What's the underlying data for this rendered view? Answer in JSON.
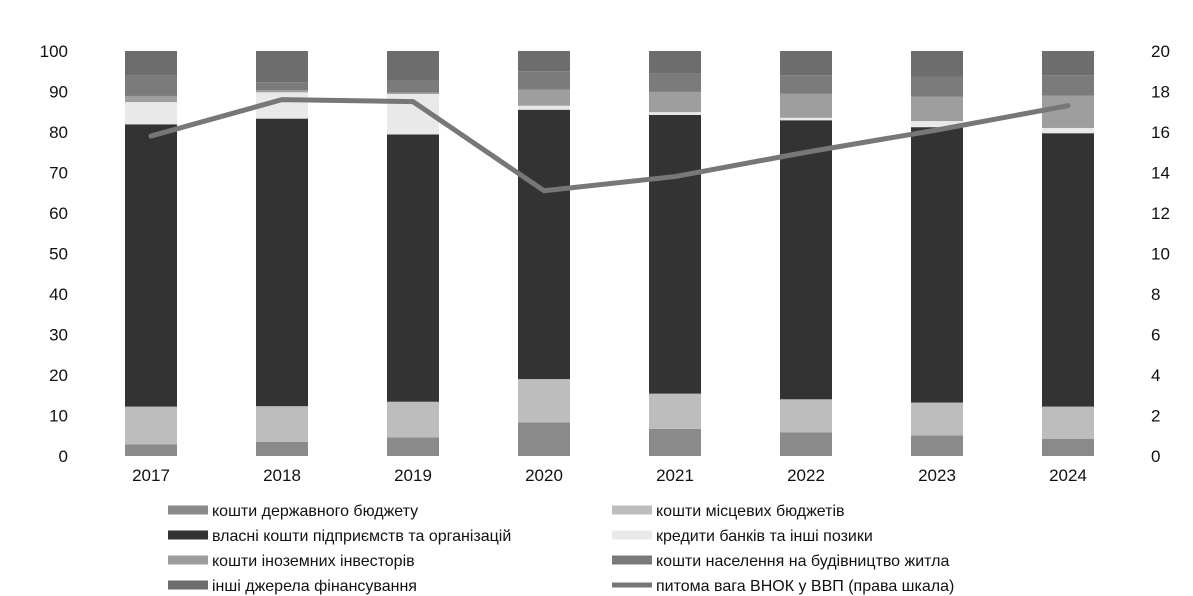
{
  "chart_data": {
    "type": "bar",
    "stacked": true,
    "categories": [
      "2017",
      "2018",
      "2019",
      "2020",
      "2021",
      "2022",
      "2023",
      "2024"
    ],
    "y_left": {
      "min": 0,
      "max": 100,
      "ticks": [
        "0",
        "10",
        "20",
        "30",
        "40",
        "50",
        "60",
        "70",
        "80",
        "90",
        "100"
      ]
    },
    "y_right": {
      "min": 0,
      "max": 20,
      "ticks": [
        "0",
        "2",
        "4",
        "6",
        "8",
        "10",
        "12",
        "14",
        "16",
        "18",
        "20"
      ]
    },
    "grid": false,
    "legend_position": "bottom",
    "series": [
      {
        "name": "кошти державного бюджету",
        "color": "#8a8a8a",
        "values": [
          2.9,
          3.5,
          4.6,
          8.3,
          6.7,
          5.8,
          5.1,
          4.2
        ]
      },
      {
        "name": "кошти місцевих бюджетів",
        "color": "#bdbdbd",
        "values": [
          9.3,
          8.8,
          8.8,
          10.7,
          8.7,
          8.2,
          8.1,
          8.0
        ]
      },
      {
        "name": "власні кошти підприємств та організацій",
        "color": "#333333",
        "values": [
          69.7,
          71.0,
          66.0,
          66.5,
          68.8,
          68.9,
          68.0,
          67.5
        ]
      },
      {
        "name": "кредити банків та інші позики",
        "color": "#e9e9e9",
        "values": [
          5.5,
          6.5,
          10.0,
          1.0,
          0.7,
          0.6,
          1.5,
          1.3
        ]
      },
      {
        "name": "кошти іноземних інвесторів",
        "color": "#9e9e9e",
        "values": [
          1.5,
          0.5,
          0.3,
          4.0,
          5.0,
          6.0,
          6.0,
          8.0
        ]
      },
      {
        "name": "кошти населення на будівництво житла",
        "color": "#7b7b7b",
        "values": [
          5.0,
          2.0,
          3.0,
          4.5,
          4.5,
          4.5,
          5.0,
          5.0
        ]
      },
      {
        "name": "інші джерела фінансування",
        "color": "#6d6d6d",
        "values": [
          6.1,
          7.7,
          7.3,
          5.0,
          5.6,
          6.0,
          6.3,
          6.0
        ]
      }
    ],
    "line_series": {
      "name": "питома вага ВНОК у ВВП (права шкала)",
      "color": "#777777",
      "axis": "right",
      "values": [
        15.8,
        17.6,
        17.5,
        13.1,
        13.8,
        15.0,
        16.1,
        17.3
      ]
    }
  }
}
